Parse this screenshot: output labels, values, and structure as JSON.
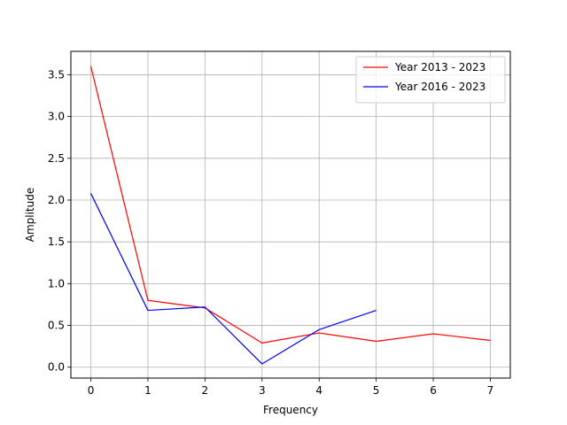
{
  "chart_data": {
    "type": "line",
    "title": "",
    "xlabel": "Frequency",
    "ylabel": "Amplitude",
    "xlim": [
      -0.35,
      7.35
    ],
    "ylim": [
      -0.13,
      3.78
    ],
    "xticks": [
      0,
      1,
      2,
      3,
      4,
      5,
      6,
      7
    ],
    "xtick_labels": [
      "0",
      "1",
      "2",
      "3",
      "4",
      "5",
      "6",
      "7"
    ],
    "yticks": [
      0.0,
      0.5,
      1.0,
      1.5,
      2.0,
      2.5,
      3.0,
      3.5
    ],
    "ytick_labels": [
      "0.0",
      "0.5",
      "1.0",
      "1.5",
      "2.0",
      "2.5",
      "3.0",
      "3.5"
    ],
    "grid": true,
    "legend_position": "top-right",
    "series": [
      {
        "name": "Year 2013 - 2023",
        "color": "#ff0000",
        "x": [
          0,
          1,
          2,
          3,
          4,
          5,
          6,
          7
        ],
        "y": [
          3.6,
          0.8,
          0.71,
          0.29,
          0.41,
          0.31,
          0.4,
          0.32
        ]
      },
      {
        "name": "Year 2016 - 2023",
        "color": "#0000ff",
        "x": [
          0,
          1,
          2,
          3,
          4,
          5
        ],
        "y": [
          2.08,
          0.68,
          0.72,
          0.04,
          0.45,
          0.68
        ]
      }
    ]
  }
}
